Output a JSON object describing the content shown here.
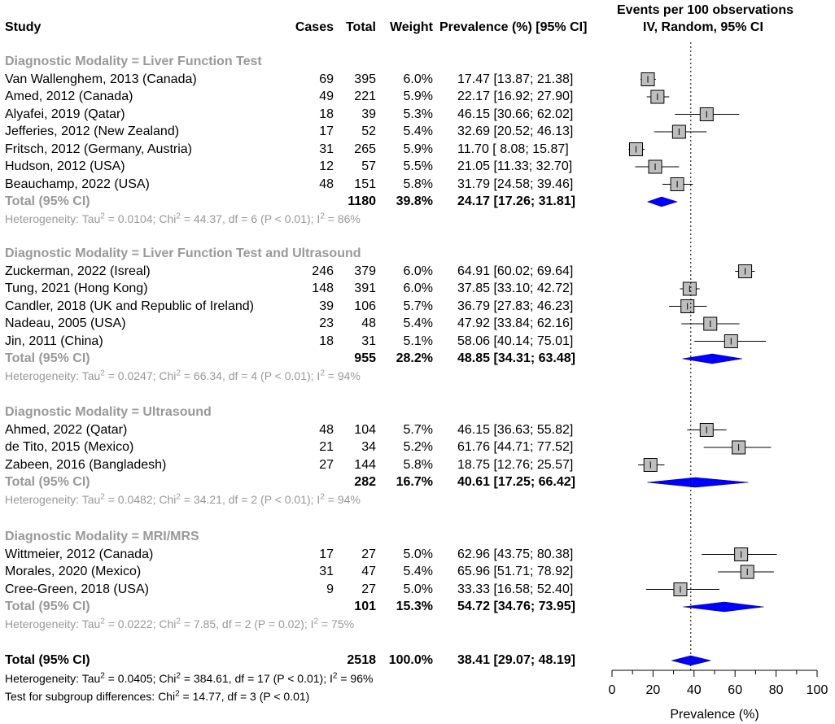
{
  "header": {
    "study": "Study",
    "cases": "Cases",
    "total": "Total",
    "weight": "Weight",
    "prevalence": "Prevalence (%) [95% CI]",
    "plot_title_1": "Events per 100 observations",
    "plot_title_2": "IV, Random, 95% CI"
  },
  "groups": [
    {
      "label": "Diagnostic Modality = Liver Function Test",
      "studies": [
        {
          "study": "Van Wallenghem, 2013 (Canada)",
          "cases": "69",
          "total": "395",
          "weight": "6.0%",
          "ci": "17.47 [13.87; 21.38]",
          "est": 17.47,
          "lo": 13.87,
          "hi": 21.38
        },
        {
          "study": "Amed, 2012 (Canada)",
          "cases": "49",
          "total": "221",
          "weight": "5.9%",
          "ci": "22.17 [16.92; 27.90]",
          "est": 22.17,
          "lo": 16.92,
          "hi": 27.9
        },
        {
          "study": "Alyafei, 2019 (Qatar)",
          "cases": "18",
          "total": "39",
          "weight": "5.3%",
          "ci": "46.15 [30.66; 62.02]",
          "est": 46.15,
          "lo": 30.66,
          "hi": 62.02
        },
        {
          "study": "Jefferies, 2012 (New Zealand)",
          "cases": "17",
          "total": "52",
          "weight": "5.4%",
          "ci": "32.69 [20.52; 46.13]",
          "est": 32.69,
          "lo": 20.52,
          "hi": 46.13
        },
        {
          "study": "Fritsch, 2012 (Germany, Austria)",
          "cases": "31",
          "total": "265",
          "weight": "5.9%",
          "ci": "11.70 [ 8.08; 15.87]",
          "est": 11.7,
          "lo": 8.08,
          "hi": 15.87
        },
        {
          "study": "Hudson, 2012 (USA)",
          "cases": "12",
          "total": "57",
          "weight": "5.5%",
          "ci": "21.05 [11.33; 32.70]",
          "est": 21.05,
          "lo": 11.33,
          "hi": 32.7
        },
        {
          "study": "Beauchamp, 2022 (USA)",
          "cases": "48",
          "total": "151",
          "weight": "5.8%",
          "ci": "31.79 [24.58; 39.46]",
          "est": 31.79,
          "lo": 24.58,
          "hi": 39.46
        }
      ],
      "total": {
        "label": "Total (95% CI)",
        "total": "1180",
        "weight": "39.8%",
        "ci": "24.17 [17.26; 31.81]",
        "est": 24.17,
        "lo": 17.26,
        "hi": 31.81
      },
      "het": {
        "pre": "Heterogeneity: Tau",
        "tau2": "2",
        "mid": " = 0.0104; Chi",
        "chi2": "2",
        "mid2": " = 44.37, df = 6 (P < 0.01); I",
        "i2": "2",
        "post": " = 86%"
      }
    },
    {
      "label": "Diagnostic Modality = Liver Function Test and Ultrasound",
      "studies": [
        {
          "study": "Zuckerman, 2022 (Isreal)",
          "cases": "246",
          "total": "379",
          "weight": "6.0%",
          "ci": "64.91 [60.02; 69.64]",
          "est": 64.91,
          "lo": 60.02,
          "hi": 69.64
        },
        {
          "study": "Tung, 2021 (Hong Kong)",
          "cases": "148",
          "total": "391",
          "weight": "6.0%",
          "ci": "37.85 [33.10; 42.72]",
          "est": 37.85,
          "lo": 33.1,
          "hi": 42.72
        },
        {
          "study": "Candler, 2018 (UK and Republic of Ireland)",
          "cases": "39",
          "total": "106",
          "weight": "5.7%",
          "ci": "36.79 [27.83; 46.23]",
          "est": 36.79,
          "lo": 27.83,
          "hi": 46.23
        },
        {
          "study": "Nadeau, 2005 (USA)",
          "cases": "23",
          "total": "48",
          "weight": "5.4%",
          "ci": "47.92 [33.84; 62.16]",
          "est": 47.92,
          "lo": 33.84,
          "hi": 62.16
        },
        {
          "study": "Jin, 2011 (China)",
          "cases": "18",
          "total": "31",
          "weight": "5.1%",
          "ci": "58.06 [40.14; 75.01]",
          "est": 58.06,
          "lo": 40.14,
          "hi": 75.01
        }
      ],
      "total": {
        "label": "Total (95% CI)",
        "total": "955",
        "weight": "28.2%",
        "ci": "48.85 [34.31; 63.48]",
        "est": 48.85,
        "lo": 34.31,
        "hi": 63.48
      },
      "het": {
        "pre": "Heterogeneity: Tau",
        "tau2": "2",
        "mid": " = 0.0247; Chi",
        "chi2": "2",
        "mid2": " = 66.34, df = 4 (P < 0.01); I",
        "i2": "2",
        "post": " = 94%"
      }
    },
    {
      "label": "Diagnostic Modality = Ultrasound",
      "studies": [
        {
          "study": "Ahmed, 2022 (Qatar)",
          "cases": "48",
          "total": "104",
          "weight": "5.7%",
          "ci": "46.15 [36.63; 55.82]",
          "est": 46.15,
          "lo": 36.63,
          "hi": 55.82
        },
        {
          "study": "de Tito, 2015 (Mexico)",
          "cases": "21",
          "total": "34",
          "weight": "5.2%",
          "ci": "61.76 [44.71; 77.52]",
          "est": 61.76,
          "lo": 44.71,
          "hi": 77.52
        },
        {
          "study": "Zabeen, 2016 (Bangladesh)",
          "cases": "27",
          "total": "144",
          "weight": "5.8%",
          "ci": "18.75 [12.76; 25.57]",
          "est": 18.75,
          "lo": 12.76,
          "hi": 25.57
        }
      ],
      "total": {
        "label": "Total (95% CI)",
        "total": "282",
        "weight": "16.7%",
        "ci": "40.61 [17.25; 66.42]",
        "est": 40.61,
        "lo": 17.25,
        "hi": 66.42
      },
      "het": {
        "pre": "Heterogeneity: Tau",
        "tau2": "2",
        "mid": " = 0.0482; Chi",
        "chi2": "2",
        "mid2": " = 34.21, df = 2 (P < 0.01); I",
        "i2": "2",
        "post": " = 94%"
      }
    },
    {
      "label": "Diagnostic Modality = MRI/MRS",
      "studies": [
        {
          "study": "Wittmeier, 2012 (Canada)",
          "cases": "17",
          "total": "27",
          "weight": "5.0%",
          "ci": "62.96 [43.75; 80.38]",
          "est": 62.96,
          "lo": 43.75,
          "hi": 80.38
        },
        {
          "study": "Morales, 2020 (Mexico)",
          "cases": "31",
          "total": "47",
          "weight": "5.4%",
          "ci": "65.96 [51.71; 78.92]",
          "est": 65.96,
          "lo": 51.71,
          "hi": 78.92
        },
        {
          "study": "Cree-Green, 2018 (USA)",
          "cases": "9",
          "total": "27",
          "weight": "5.0%",
          "ci": "33.33 [16.58; 52.40]",
          "est": 33.33,
          "lo": 16.58,
          "hi": 52.4
        }
      ],
      "total": {
        "label": "Total (95% CI)",
        "total": "101",
        "weight": "15.3%",
        "ci": "54.72 [34.76; 73.95]",
        "est": 54.72,
        "lo": 34.76,
        "hi": 73.95
      },
      "het": {
        "pre": "Heterogeneity: Tau",
        "tau2": "2",
        "mid": " = 0.0222; Chi",
        "chi2": "2",
        "mid2": " = 7.85, df = 2 (P = 0.02); I",
        "i2": "2",
        "post": " = 75%"
      }
    }
  ],
  "overall": {
    "label": "Total (95% CI)",
    "total": "2518",
    "weight": "100.0%",
    "ci": "38.41 [29.07; 48.19]",
    "est": 38.41,
    "lo": 29.07,
    "hi": 48.19,
    "het": {
      "pre": "Heterogeneity: Tau",
      "tau2": "2",
      "mid": " = 0.0405; Chi",
      "chi2": "2",
      "mid2": " = 384.61, df = 17 (P < 0.01); I",
      "i2": "2",
      "post": " = 96%"
    },
    "subgroup": {
      "pre": "Test for subgroup differences: Chi",
      "chi2": "2",
      "post": " = 14.77, df = 3 (P < 0.01)"
    }
  },
  "chart_data": {
    "type": "forest",
    "title": "Events per 100 observations",
    "subtitle": "IV, Random, 95% CI",
    "xlabel": "Prevalence (%)",
    "xlim": [
      0,
      100
    ],
    "ticks": [
      "0",
      "20",
      "40",
      "60",
      "80",
      "100"
    ],
    "reference_line": 38.41
  },
  "colors": {
    "diamond": "#0000ff",
    "box": "#bebebe",
    "group_label": "#999999"
  }
}
